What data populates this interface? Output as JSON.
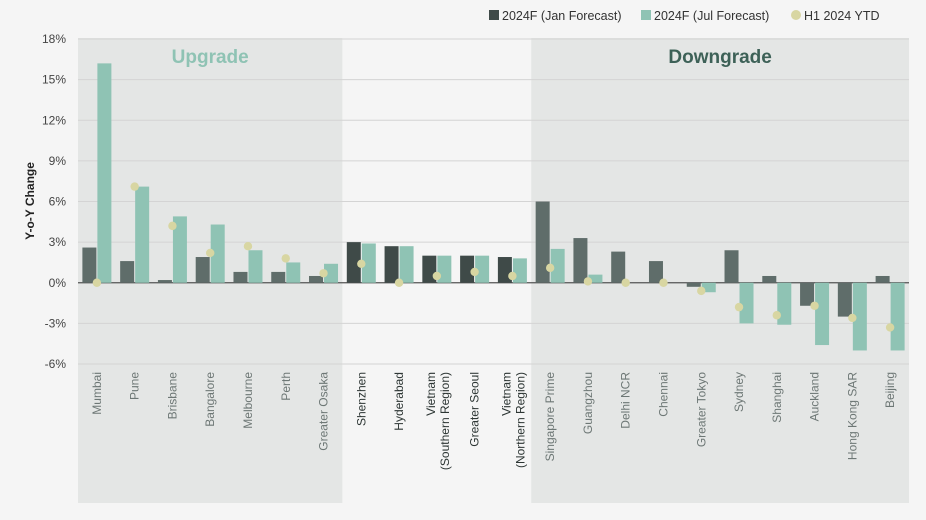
{
  "chart_data": {
    "type": "bar",
    "ylabel": "Y-o-Y Change",
    "ylim": [
      -6,
      18
    ],
    "yticks": [
      "18%",
      "15%",
      "12%",
      "9%",
      "6%",
      "3%",
      "0%",
      "-3%",
      "-6%"
    ],
    "ytick_values": [
      18,
      15,
      12,
      9,
      6,
      3,
      0,
      -3,
      -6
    ],
    "legend": {
      "placement": "top-right",
      "items": [
        {
          "label": "2024F (Jan Forecast)",
          "color": "#5f6d6a",
          "shape": "square"
        },
        {
          "label": "2024F (Jul Forecast)",
          "color": "#8fc3b4",
          "shape": "square"
        },
        {
          "label": "H1 2024 YTD",
          "color": "#d8d6a2",
          "shape": "circle"
        }
      ]
    },
    "zones": [
      {
        "title": "Upgrade",
        "title_color": "#8fc3b4",
        "band_color": "#e4e6e5",
        "categories": 7
      },
      {
        "title": "",
        "title_color": "#333333",
        "band_color": "#f5f5f5",
        "categories": 5
      },
      {
        "title": "Downgrade",
        "title_color": "#3d6157",
        "band_color": "#e4e6e5",
        "categories": 10
      }
    ],
    "categories": [
      "Mumbai",
      "Pune",
      "Brisbane",
      "Bangalore",
      "Melbourne",
      "Perth",
      "Greater Osaka",
      "Shenzhen",
      "Hyderabad",
      "Vietnam (Southern Region)",
      "Greater Seoul",
      "Vietnam (Northern Region)",
      "Singapore Prime",
      "Guangzhou",
      "Delhi NCR",
      "Chennai",
      "Greater Tokyo",
      "Sydney",
      "Shanghai",
      "Auckland",
      "Hong Kong SAR",
      "Beijing"
    ],
    "category_lines": [
      [
        "Mumbai"
      ],
      [
        "Pune"
      ],
      [
        "Brisbane"
      ],
      [
        "Bangalore"
      ],
      [
        "Melbourne"
      ],
      [
        "Perth"
      ],
      [
        "Greater Osaka"
      ],
      [
        "Shenzhen"
      ],
      [
        "Hyderabad"
      ],
      [
        "Vietnam",
        "(Southern Region)"
      ],
      [
        "Greater Seoul"
      ],
      [
        "Vietnam",
        "(Northern Region)"
      ],
      [
        "Singapore Prime"
      ],
      [
        "Guangzhou"
      ],
      [
        "Delhi NCR"
      ],
      [
        "Chennai"
      ],
      [
        "Greater Tokyo"
      ],
      [
        "Sydney"
      ],
      [
        "Shanghai"
      ],
      [
        "Auckland"
      ],
      [
        "Hong Kong SAR"
      ],
      [
        "Beijing"
      ]
    ],
    "series": [
      {
        "name": "2024F (Jan Forecast)",
        "values": [
          2.6,
          1.6,
          0.2,
          1.9,
          0.8,
          0.8,
          0.5,
          3.0,
          2.7,
          2.0,
          2.0,
          1.9,
          6.0,
          3.3,
          2.3,
          1.6,
          -0.3,
          2.4,
          0.5,
          -1.7,
          -2.5,
          0.5
        ]
      },
      {
        "name": "2024F (Jul Forecast)",
        "values": [
          16.2,
          7.1,
          4.9,
          4.3,
          2.4,
          1.5,
          1.4,
          2.9,
          2.7,
          2.0,
          2.0,
          1.8,
          2.5,
          0.6,
          0.0,
          0.0,
          -0.7,
          -3.0,
          -3.1,
          -4.6,
          -5.0,
          -5.0
        ]
      },
      {
        "name": "H1 2024 YTD",
        "values": [
          0.0,
          7.1,
          4.2,
          2.2,
          2.7,
          1.8,
          0.7,
          1.4,
          0.0,
          0.5,
          0.8,
          0.5,
          1.1,
          0.1,
          0.0,
          0.0,
          -0.6,
          -1.8,
          -2.4,
          -1.7,
          -2.6,
          -3.3
        ]
      }
    ],
    "grid": true
  }
}
